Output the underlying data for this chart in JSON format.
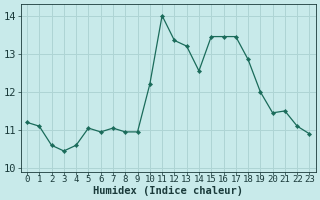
{
  "x": [
    0,
    1,
    2,
    3,
    4,
    5,
    6,
    7,
    8,
    9,
    10,
    11,
    12,
    13,
    14,
    15,
    16,
    17,
    18,
    19,
    20,
    21,
    22,
    23
  ],
  "y": [
    11.2,
    11.1,
    10.6,
    10.45,
    10.6,
    11.05,
    10.95,
    11.05,
    10.95,
    10.95,
    12.2,
    14.0,
    13.35,
    13.2,
    12.55,
    13.45,
    13.45,
    13.45,
    12.85,
    12.0,
    11.45,
    11.5,
    11.1,
    10.9
  ],
  "bg_color": "#c8eaea",
  "grid_color": "#aed4d4",
  "line_color": "#1a6b5a",
  "marker_color": "#1a6b5a",
  "xlabel": "Humidex (Indice chaleur)",
  "ylim": [
    9.9,
    14.3
  ],
  "xlim": [
    -0.5,
    23.5
  ],
  "yticks": [
    10,
    11,
    12,
    13,
    14
  ],
  "xticks": [
    0,
    1,
    2,
    3,
    4,
    5,
    6,
    7,
    8,
    9,
    10,
    11,
    12,
    13,
    14,
    15,
    16,
    17,
    18,
    19,
    20,
    21,
    22,
    23
  ],
  "font_color": "#1a3a3a",
  "xlabel_fontsize": 7.5,
  "tick_fontsize": 6.5,
  "ytick_fontsize": 7.5
}
